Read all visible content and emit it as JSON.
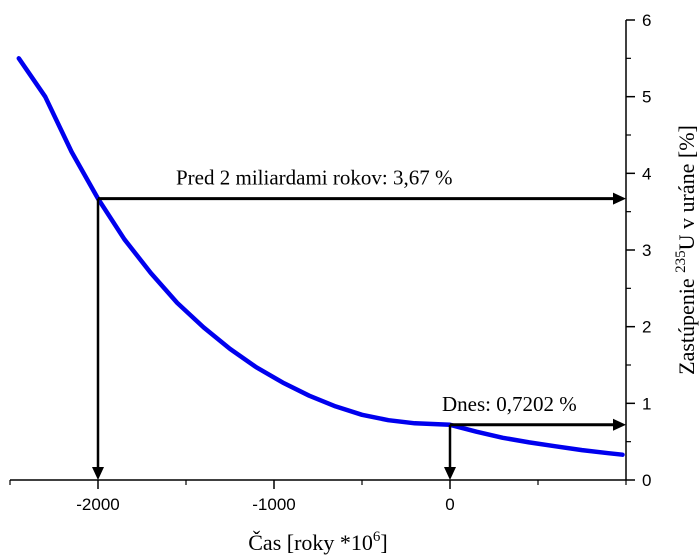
{
  "chart_data": {
    "type": "line",
    "xlabel": "Čas [roky *10",
    "xlabel_sup": "6",
    "xlabel_end": "]",
    "ylabel_prefix": "Zastúpenie ",
    "ylabel_sup": "235",
    "ylabel_suffix": "U v uráne [%]",
    "xlim": [
      -2500,
      1000
    ],
    "ylim": [
      0,
      6
    ],
    "x_ticks": [
      -2000,
      -1000,
      0
    ],
    "x_tick_labels": [
      "-2000",
      "-1000",
      "0"
    ],
    "x_minor_ticks": [
      -2500,
      -1500,
      -500,
      500,
      1000
    ],
    "y_ticks": [
      0,
      1,
      2,
      3,
      4,
      5,
      6
    ],
    "y_tick_labels": [
      "0",
      "1",
      "2",
      "3",
      "4",
      "5",
      "6"
    ],
    "y_axis_position": "right",
    "grid": false,
    "series": [
      {
        "color": "#0000ee",
        "x": [
          -2450,
          -2300,
          -2150,
          -2000,
          -1850,
          -1700,
          -1550,
          -1400,
          -1250,
          -1100,
          -950,
          -800,
          -650,
          -500,
          -350,
          -200,
          -50,
          0,
          150,
          300,
          450,
          600,
          750,
          900,
          980
        ],
        "y": [
          5.5,
          5.0,
          4.28,
          3.67,
          3.14,
          2.7,
          2.31,
          1.99,
          1.71,
          1.47,
          1.27,
          1.1,
          0.96,
          0.85,
          0.78,
          0.74,
          0.725,
          0.72,
          0.63,
          0.55,
          0.49,
          0.44,
          0.39,
          0.35,
          0.33
        ]
      }
    ],
    "annotations": [
      {
        "text": "Pred 2 miliardami rokov: 3,67 %",
        "x": -2000,
        "y": 3.67,
        "arrow_right_to_axis": true,
        "arrow_down_to_axis": true
      },
      {
        "text": "Dnes: 0,7202 %",
        "x": 0,
        "y": 0.72,
        "arrow_right_to_axis": true,
        "arrow_down_to_axis": true
      }
    ]
  }
}
